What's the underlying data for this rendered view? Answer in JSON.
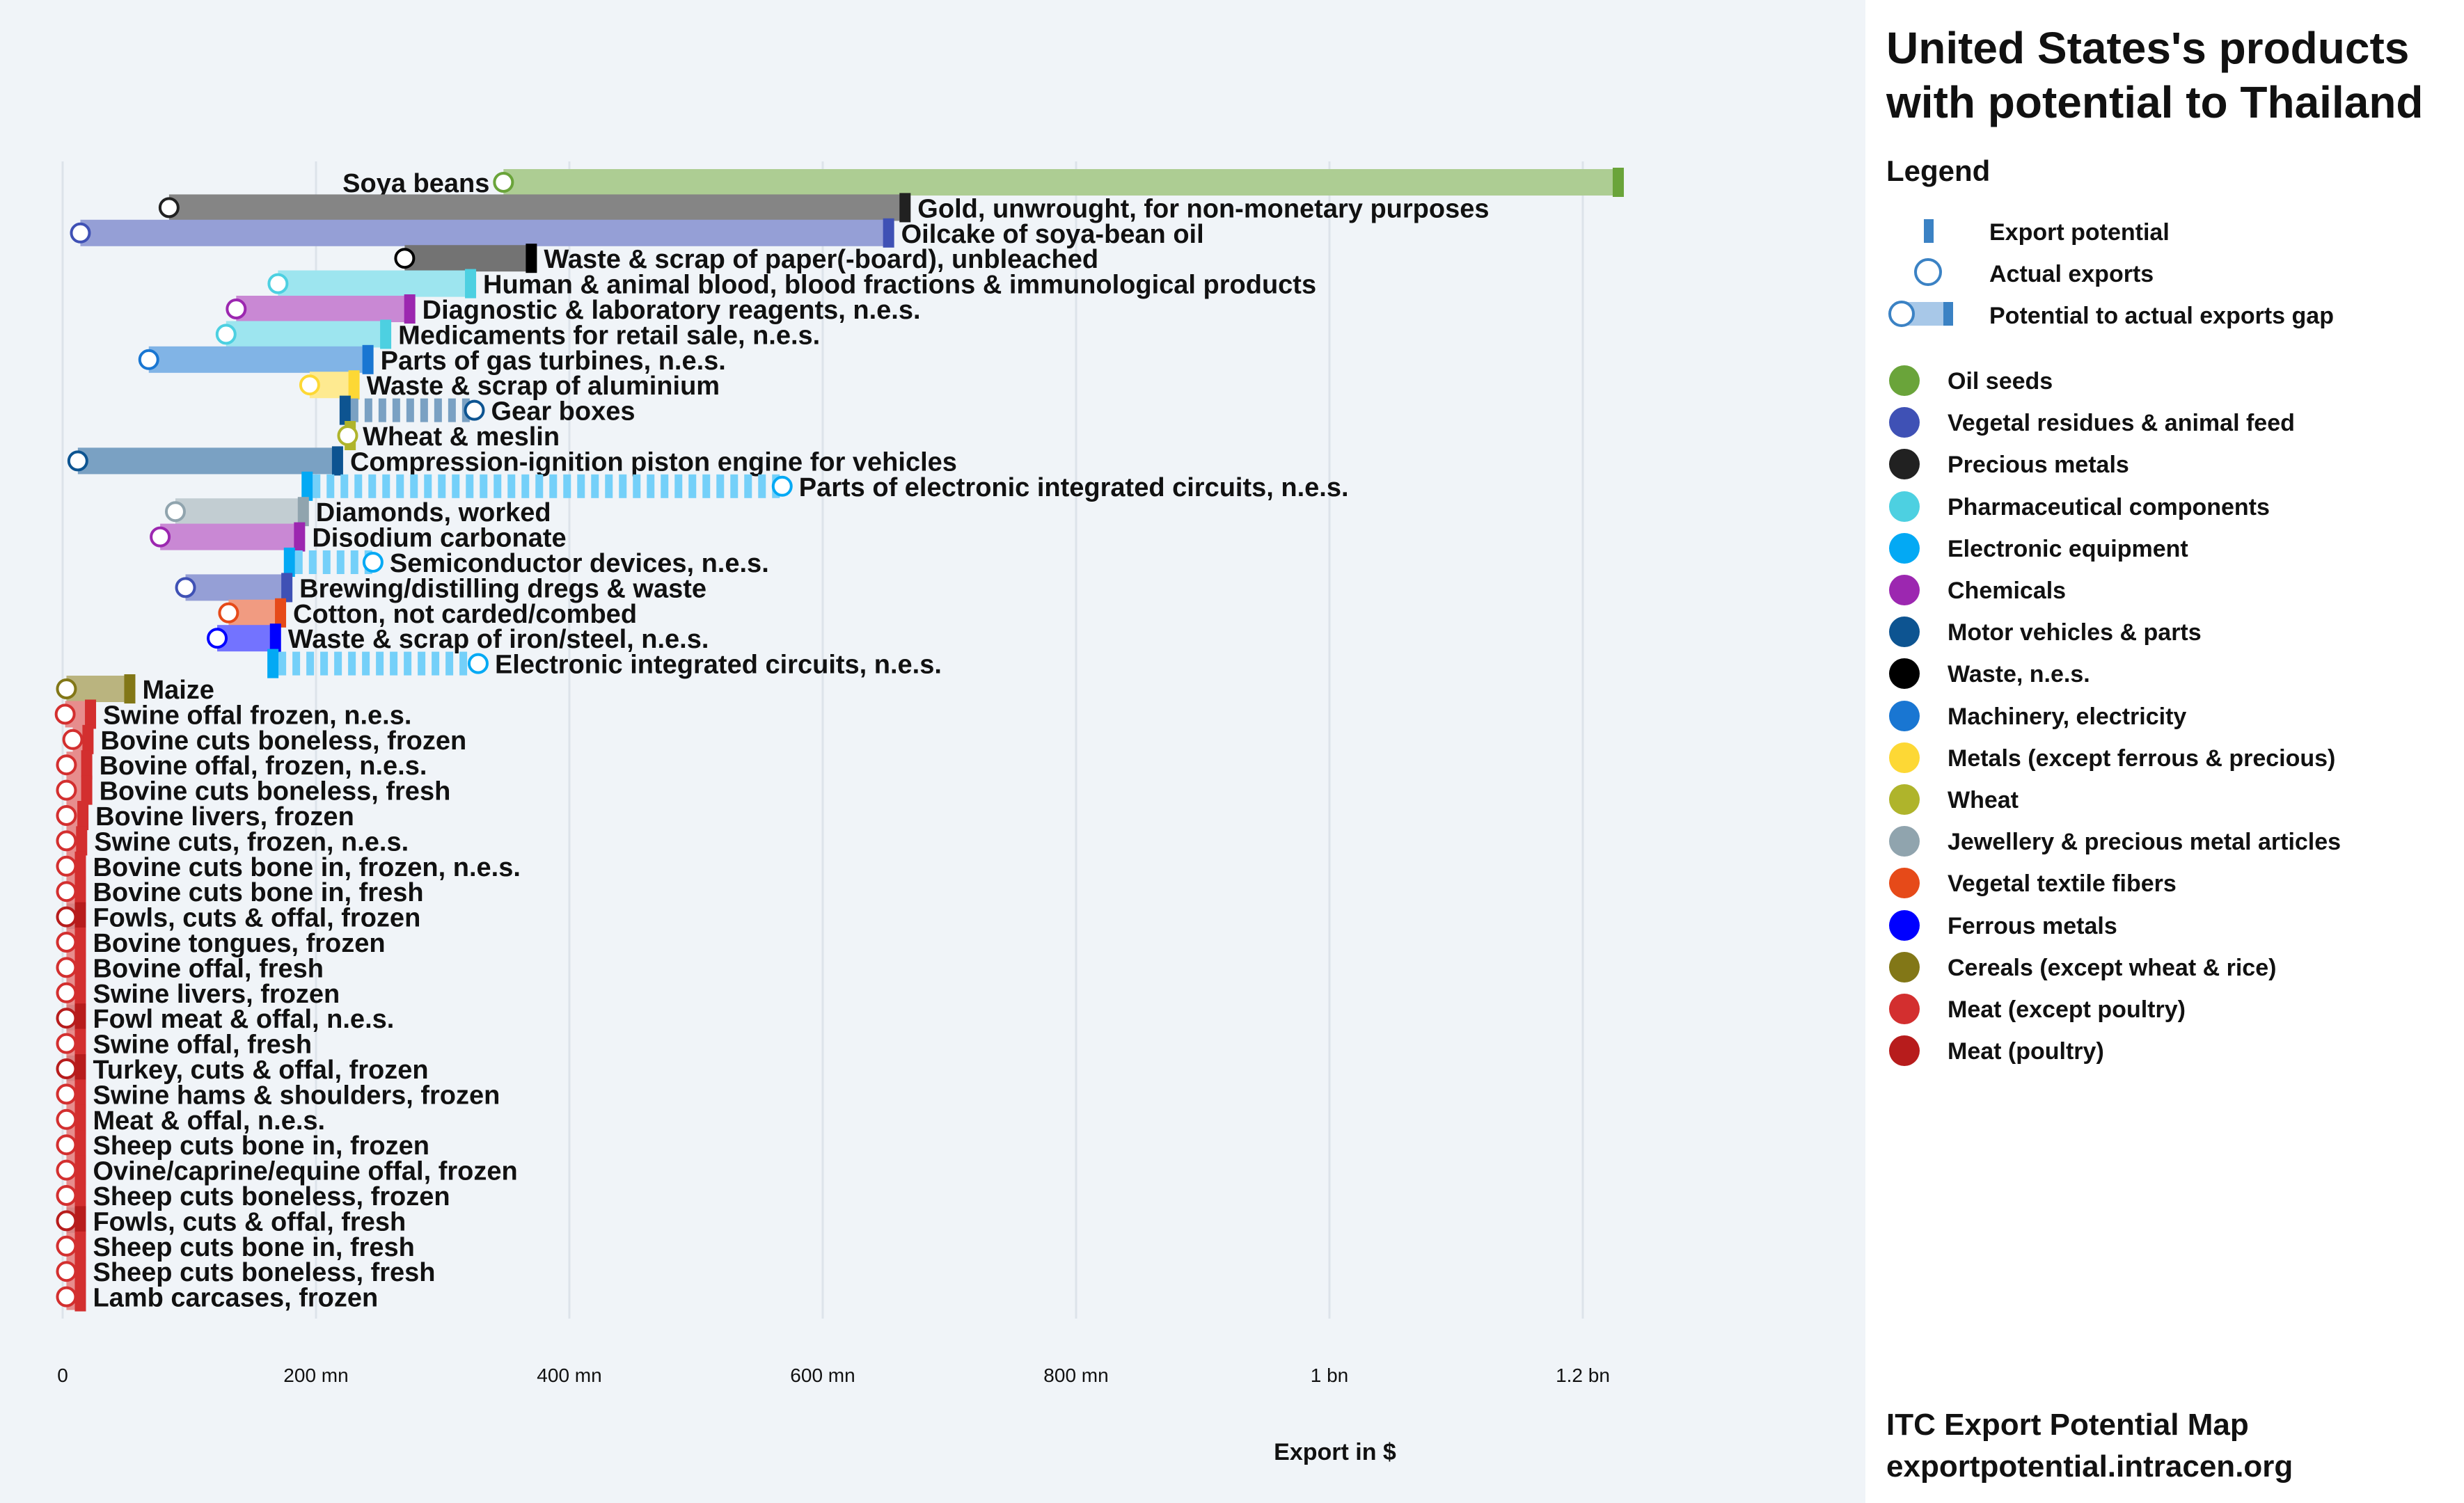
{
  "page": {
    "title": "United States's products with potential to Thailand",
    "legend_heading": "Legend",
    "legend_keys": [
      "Export potential",
      "Actual exports",
      "Potential to actual exports gap"
    ],
    "footer_line1": "ITC Export Potential Map",
    "footer_line2": "exportpotential.intracen.org"
  },
  "chart_data": {
    "type": "bar",
    "xlabel": "Export in $",
    "x_ticks": [
      0,
      200,
      400,
      600,
      800,
      1000,
      1200
    ],
    "x_tick_labels": [
      "0",
      "200 mn",
      "400 mn",
      "600 mn",
      "800 mn",
      "1 bn",
      "1.2 bn"
    ],
    "xlim": [
      0,
      1290
    ],
    "unit": "mn USD",
    "categories": [
      {
        "name": "Oil seeds",
        "color": "#6aa43a"
      },
      {
        "name": "Vegetal residues & animal feed",
        "color": "#3f51b5"
      },
      {
        "name": "Precious metals",
        "color": "#212121"
      },
      {
        "name": "Pharmaceutical components",
        "color": "#4dd0e1"
      },
      {
        "name": "Electronic equipment",
        "color": "#03a9f4"
      },
      {
        "name": "Chemicals",
        "color": "#9c27b0"
      },
      {
        "name": "Motor vehicles & parts",
        "color": "#0d5491"
      },
      {
        "name": "Waste, n.e.s.",
        "color": "#000000"
      },
      {
        "name": "Machinery, electricity",
        "color": "#1976d2"
      },
      {
        "name": "Metals (except ferrous & precious)",
        "color": "#fdd835"
      },
      {
        "name": "Wheat",
        "color": "#afb42b"
      },
      {
        "name": "Jewellery & precious metal articles",
        "color": "#90a4ae"
      },
      {
        "name": "Vegetal textile fibers",
        "color": "#e64a19"
      },
      {
        "name": "Ferrous metals",
        "color": "#0000ff"
      },
      {
        "name": "Cereals (except wheat & rice)",
        "color": "#827717"
      },
      {
        "name": "Meat (except poultry)",
        "color": "#d32f2f"
      },
      {
        "name": "Meat (poultry)",
        "color": "#b71c1c"
      }
    ],
    "products": [
      {
        "name": "Soya beans",
        "cat": 0,
        "potential": 1228,
        "actual": 348,
        "label_side": "left"
      },
      {
        "name": "Gold, unwrought, for non-monetary purposes",
        "cat": 2,
        "potential": 665,
        "actual": 84
      },
      {
        "name": "Oilcake of soya-bean oil",
        "cat": 1,
        "potential": 652,
        "actual": 14
      },
      {
        "name": "Waste & scrap of paper(-board), unbleached",
        "cat": 7,
        "potential": 370,
        "actual": 270
      },
      {
        "name": "Human & animal blood, blood fractions & immunological products",
        "cat": 3,
        "potential": 322,
        "actual": 170
      },
      {
        "name": "Diagnostic & laboratory reagents, n.e.s.",
        "cat": 5,
        "potential": 274,
        "actual": 137
      },
      {
        "name": "Medicaments for retail sale, n.e.s.",
        "cat": 3,
        "potential": 255,
        "actual": 129
      },
      {
        "name": "Parts of gas turbines, n.e.s.",
        "cat": 8,
        "potential": 241,
        "actual": 68
      },
      {
        "name": "Waste & scrap of aluminium",
        "cat": 9,
        "potential": 230,
        "actual": 195
      },
      {
        "name": "Gear boxes",
        "cat": 6,
        "potential": 223,
        "actual": 325
      },
      {
        "name": "Wheat & meslin",
        "cat": 10,
        "potential": 227,
        "actual": 225
      },
      {
        "name": "Compression-ignition piston engine for vehicles",
        "cat": 6,
        "potential": 217,
        "actual": 12
      },
      {
        "name": "Parts of electronic integrated circuits, n.e.s.",
        "cat": 4,
        "potential": 193,
        "actual": 568
      },
      {
        "name": "Diamonds, worked",
        "cat": 11,
        "potential": 190,
        "actual": 89
      },
      {
        "name": "Disodium carbonate",
        "cat": 5,
        "potential": 187,
        "actual": 77
      },
      {
        "name": "Semiconductor devices, n.e.s.",
        "cat": 4,
        "potential": 179,
        "actual": 245
      },
      {
        "name": "Brewing/distilling dregs & waste",
        "cat": 1,
        "potential": 177,
        "actual": 97
      },
      {
        "name": "Cotton, not carded/combed",
        "cat": 12,
        "potential": 172,
        "actual": 131
      },
      {
        "name": "Waste & scrap of iron/steel, n.e.s.",
        "cat": 13,
        "potential": 168,
        "actual": 122
      },
      {
        "name": "Electronic integrated circuits, n.e.s.",
        "cat": 4,
        "potential": 166,
        "actual": 328
      },
      {
        "name": "Maize",
        "cat": 14,
        "potential": 53,
        "actual": 3
      },
      {
        "name": "Swine offal frozen, n.e.s.",
        "cat": 15,
        "potential": 22,
        "actual": 2
      },
      {
        "name": "Bovine cuts boneless, frozen",
        "cat": 15,
        "potential": 20,
        "actual": 8
      },
      {
        "name": "Bovine offal, frozen, n.e.s.",
        "cat": 15,
        "potential": 19,
        "actual": 3
      },
      {
        "name": "Bovine cuts boneless, fresh",
        "cat": 15,
        "potential": 19,
        "actual": 3
      },
      {
        "name": "Bovine livers, frozen",
        "cat": 15,
        "potential": 16,
        "actual": 3
      },
      {
        "name": "Swine cuts, frozen, n.e.s.",
        "cat": 15,
        "potential": 15,
        "actual": 3
      },
      {
        "name": "Bovine cuts bone in, frozen, n.e.s.",
        "cat": 15,
        "potential": 14,
        "actual": 3
      },
      {
        "name": "Bovine cuts bone in, fresh",
        "cat": 15,
        "potential": 14,
        "actual": 3
      },
      {
        "name": "Fowls, cuts & offal, frozen",
        "cat": 16,
        "potential": 14,
        "actual": 3
      },
      {
        "name": "Bovine tongues, frozen",
        "cat": 15,
        "potential": 14,
        "actual": 3
      },
      {
        "name": "Bovine offal, fresh",
        "cat": 15,
        "potential": 14,
        "actual": 3
      },
      {
        "name": "Swine livers, frozen",
        "cat": 15,
        "potential": 14,
        "actual": 3
      },
      {
        "name": "Fowl meat & offal, n.e.s.",
        "cat": 16,
        "potential": 14,
        "actual": 3
      },
      {
        "name": "Swine offal, fresh",
        "cat": 15,
        "potential": 14,
        "actual": 3
      },
      {
        "name": "Turkey, cuts & offal, frozen",
        "cat": 16,
        "potential": 14,
        "actual": 3
      },
      {
        "name": "Swine hams & shoulders, frozen",
        "cat": 15,
        "potential": 14,
        "actual": 3
      },
      {
        "name": "Meat & offal, n.e.s.",
        "cat": 15,
        "potential": 14,
        "actual": 3
      },
      {
        "name": "Sheep cuts bone in, frozen",
        "cat": 15,
        "potential": 14,
        "actual": 3
      },
      {
        "name": "Ovine/caprine/equine offal, frozen",
        "cat": 15,
        "potential": 14,
        "actual": 3
      },
      {
        "name": "Sheep cuts boneless, frozen",
        "cat": 15,
        "potential": 14,
        "actual": 3
      },
      {
        "name": "Fowls, cuts & offal, fresh",
        "cat": 16,
        "potential": 14,
        "actual": 3
      },
      {
        "name": "Sheep cuts bone in, fresh",
        "cat": 15,
        "potential": 14,
        "actual": 3
      },
      {
        "name": "Sheep cuts boneless, fresh",
        "cat": 15,
        "potential": 14,
        "actual": 3
      },
      {
        "name": "Lamb carcases, frozen",
        "cat": 15,
        "potential": 14,
        "actual": 3
      }
    ]
  }
}
